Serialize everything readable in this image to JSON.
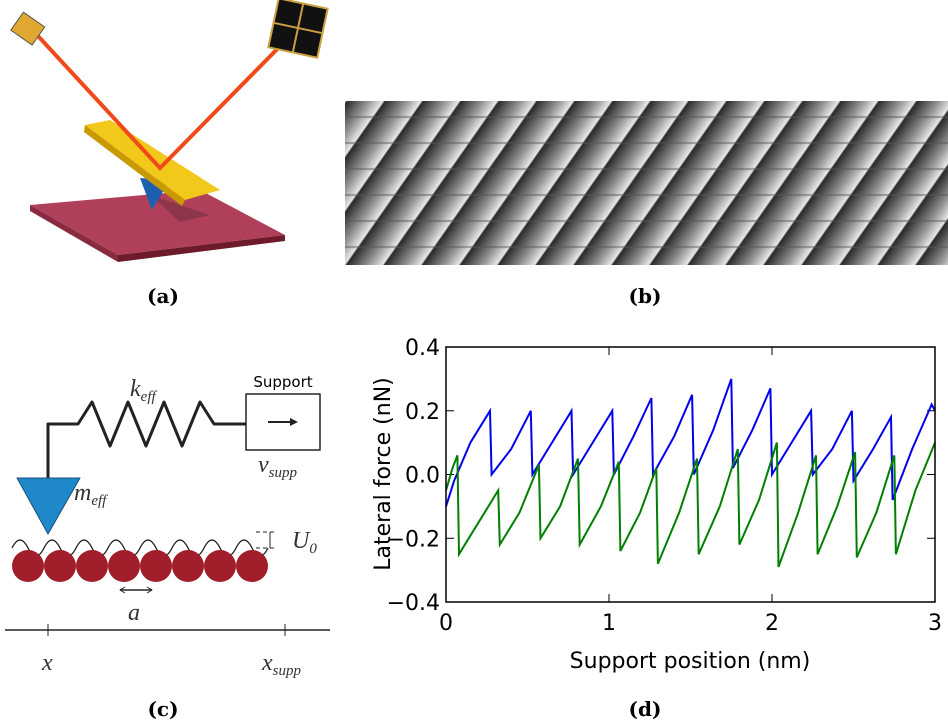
{
  "panels": {
    "a": {
      "caption": "(a)"
    },
    "b": {
      "caption": "(b)"
    },
    "c": {
      "caption": "(c)",
      "spring": {
        "symbol": "k",
        "subscript": "eff"
      },
      "support": "Support",
      "velocity": {
        "symbol": "v",
        "subscript": "supp"
      },
      "mass": {
        "symbol": "m",
        "subscript": "eff"
      },
      "potential": {
        "symbol": "U",
        "subscript": "0"
      },
      "lattice": "a",
      "x_tip": "x",
      "x_support": {
        "symbol": "x",
        "subscript": "supp"
      }
    },
    "d": {
      "caption": "(d)"
    }
  },
  "chart_data": {
    "type": "line",
    "xlabel": "Support position (nm)",
    "ylabel": "Lateral force (nN)",
    "xlim": [
      0,
      3
    ],
    "ylim": [
      -0.4,
      0.4
    ],
    "xticks": [
      0,
      1,
      2,
      3
    ],
    "yticks": [
      {
        "value": -0.4,
        "label": "−0.4"
      },
      {
        "value": -0.2,
        "label": "−0.2"
      },
      {
        "value": 0,
        "label": "0.0"
      },
      0.2,
      0.4
    ],
    "series": [
      {
        "color": "#0000ee",
        "x": [
          0,
          0.05,
          0.15,
          0.27,
          0.28,
          0.4,
          0.52,
          0.53,
          0.65,
          0.77,
          0.78,
          0.9,
          1.02,
          1.03,
          1.15,
          1.26,
          1.27,
          1.4,
          1.51,
          1.52,
          1.64,
          1.75,
          1.76,
          1.88,
          1.99,
          2.0,
          2.12,
          2.24,
          2.25,
          2.37,
          2.49,
          2.5,
          2.62,
          2.73,
          2.74,
          2.86,
          2.98,
          3.0
        ],
        "values": [
          -0.1,
          -0.02,
          0.1,
          0.2,
          0.0,
          0.08,
          0.2,
          0.0,
          0.1,
          0.2,
          0.0,
          0.1,
          0.2,
          0.0,
          0.12,
          0.24,
          0.0,
          0.12,
          0.25,
          0.0,
          0.14,
          0.3,
          0.02,
          0.14,
          0.27,
          0.0,
          0.1,
          0.2,
          0.0,
          0.08,
          0.2,
          -0.02,
          0.08,
          0.18,
          -0.08,
          0.08,
          0.22,
          0.2
        ]
      },
      {
        "color": "#007f00",
        "x": [
          0,
          0.04,
          0.07,
          0.08,
          0.2,
          0.32,
          0.33,
          0.45,
          0.57,
          0.58,
          0.7,
          0.81,
          0.82,
          0.95,
          1.06,
          1.07,
          1.19,
          1.29,
          1.3,
          1.43,
          1.54,
          1.55,
          1.68,
          1.79,
          1.8,
          1.92,
          2.03,
          2.04,
          2.16,
          2.27,
          2.28,
          2.4,
          2.51,
          2.52,
          2.64,
          2.75,
          2.76,
          2.88,
          3.0
        ],
        "values": [
          -0.05,
          0.02,
          0.06,
          -0.25,
          -0.15,
          -0.05,
          -0.22,
          -0.12,
          0.03,
          -0.2,
          -0.1,
          0.05,
          -0.22,
          -0.1,
          0.04,
          -0.24,
          -0.12,
          0.02,
          -0.28,
          -0.12,
          0.05,
          -0.25,
          -0.1,
          0.08,
          -0.22,
          -0.08,
          0.1,
          -0.29,
          -0.12,
          0.06,
          -0.25,
          -0.1,
          0.07,
          -0.26,
          -0.12,
          0.06,
          -0.25,
          -0.05,
          0.1
        ]
      }
    ]
  }
}
